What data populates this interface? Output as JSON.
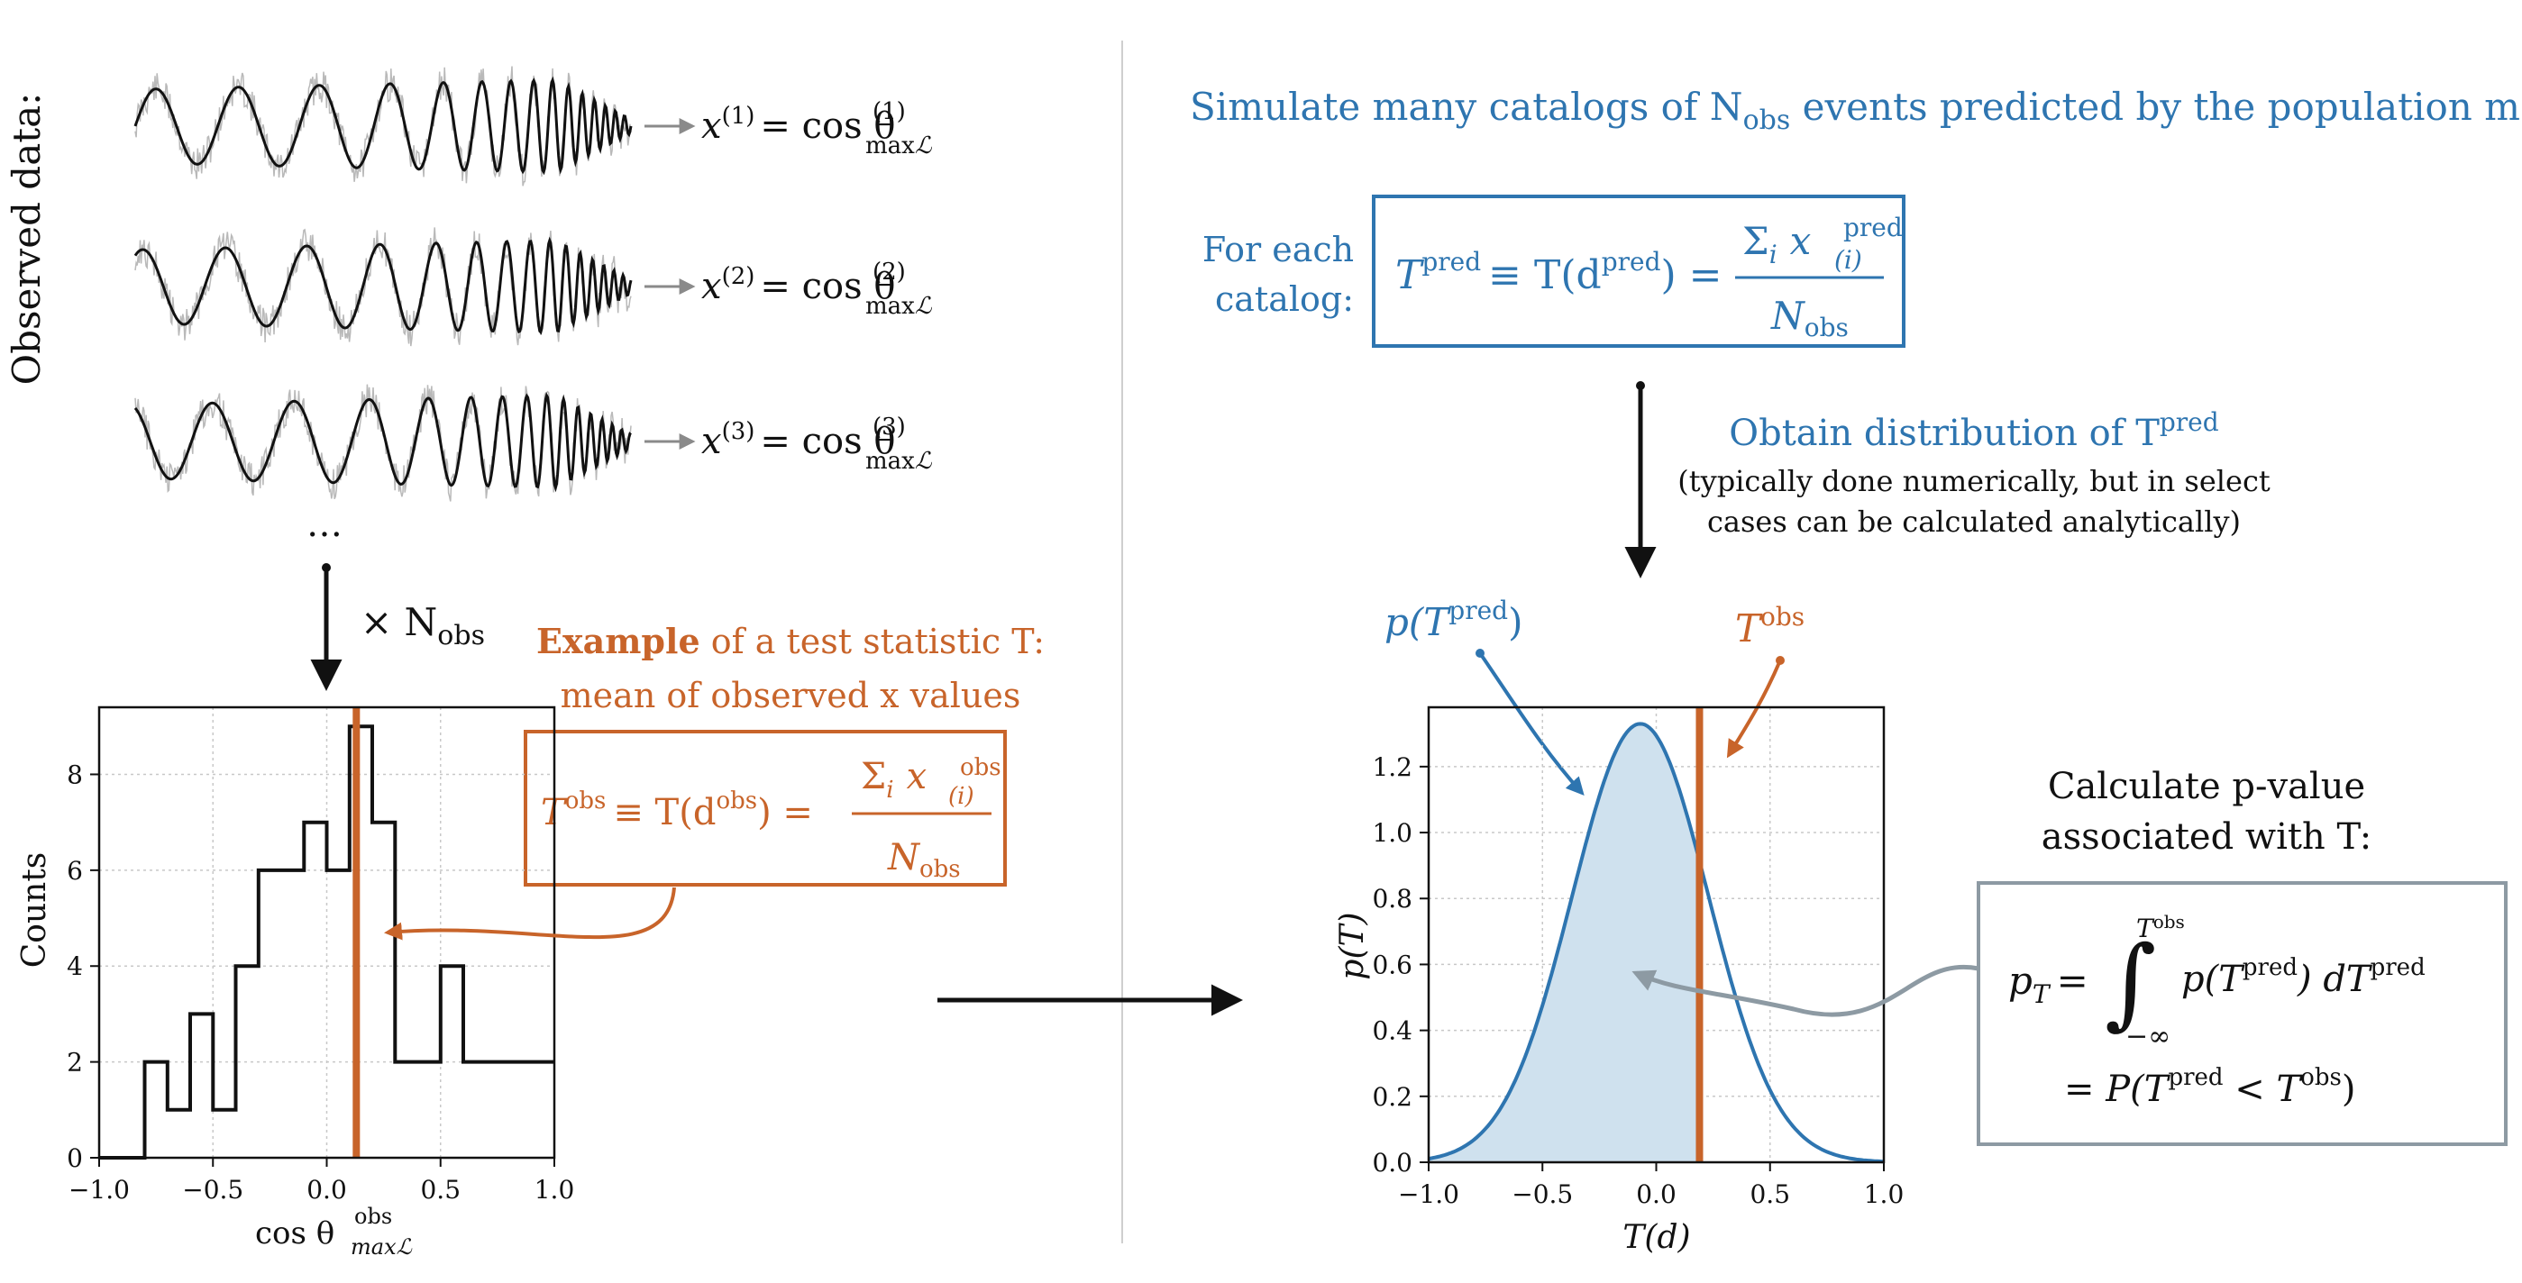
{
  "left_panel": {
    "ylabel_rotated": "Observed data:",
    "events": [
      {
        "sup": "(1)"
      },
      {
        "sup": "(2)"
      },
      {
        "sup": "(3)"
      }
    ],
    "event_lhs": "x",
    "event_rhs": "= cos θ",
    "event_sub": "max",
    "event_sub_script": "ℒ",
    "ellipsis": "…",
    "times_label": "× N",
    "times_sub": "obs",
    "example_bold": "Example",
    "example_rest": " of a test statistic T:",
    "example_line2": "mean of observed x values",
    "box_formula": {
      "lhs": "T",
      "lhs_sup": "obs",
      "mid": "≡ T(d",
      "mid_sup": "obs",
      "mid_close": ") =",
      "numer": "Σ",
      "numer_sub": "i",
      "numer_x": "x",
      "numer_x_sub": "(i)",
      "numer_x_sup": "obs",
      "denom": "N",
      "denom_sub": "obs"
    },
    "histogram": {
      "ylabel": "Counts",
      "xlabel_main": "cos θ",
      "xlabel_sup": "obs",
      "xlabel_sub": "maxℒ",
      "xticks": [
        "−1.0",
        "−0.5",
        "0.0",
        "0.5",
        "1.0"
      ],
      "yticks": [
        "0",
        "2",
        "4",
        "6",
        "8"
      ]
    }
  },
  "right_panel": {
    "headline_pre": "Simulate many catalogs of N",
    "headline_sub": "obs",
    "headline_post": " events predicted by the population model …",
    "for_each_line1": "For each",
    "for_each_line2": "catalog:",
    "box_formula": {
      "lhs": "T",
      "lhs_sup": "pred",
      "mid": "≡ T(d",
      "mid_sup": "pred",
      "mid_close": ") =",
      "numer": "Σ",
      "numer_sub": "i",
      "numer_x": "x",
      "numer_x_sub": "(i)",
      "numer_x_sup": "pred",
      "denom": "N",
      "denom_sub": "obs"
    },
    "obtain_main": "Obtain distribution of T",
    "obtain_sup": "pred",
    "obtain_note1": "(typically done numerically, but in select",
    "obtain_note2": "cases can be calculated analytically)",
    "p_label": "p(T",
    "p_label_sup": "pred",
    "p_label_close": ")",
    "tobs_label": "T",
    "tobs_label_sup": "obs",
    "calc_line1": "Calculate p-value",
    "calc_line2": "associated with T:",
    "pvalue_box": {
      "lhs": "p",
      "lhs_sub": "T",
      "eq": "=",
      "int_upper": "T",
      "int_upper_sup": "obs",
      "int_lower": "−∞",
      "integrand": "p(T",
      "integrand_sup": "pred",
      "integrand_close": ") dT",
      "integrand_close_sup": "pred",
      "line2": "= P(T",
      "line2_sup1": "pred",
      "line2_mid": " < T",
      "line2_sup2": "obs",
      "line2_close": ")"
    },
    "density_plot": {
      "ylabel": "p(T)",
      "xlabel": "T(d)",
      "xticks": [
        "−1.0",
        "−0.5",
        "0.0",
        "0.5",
        "1.0"
      ],
      "yticks": [
        "0.0",
        "0.2",
        "0.4",
        "0.6",
        "0.8",
        "1.0",
        "1.2"
      ]
    }
  },
  "colors": {
    "orange": "#c8642a",
    "blue": "#2e75b0",
    "gray": "#8d9aa3",
    "fill": "#cfe1ee"
  },
  "chart_data": [
    {
      "type": "bar",
      "subtype": "step-histogram",
      "bin_edges": [
        -1.0,
        -0.9,
        -0.8,
        -0.7,
        -0.6,
        -0.5,
        -0.4,
        -0.3,
        -0.2,
        -0.1,
        0.0,
        0.1,
        0.2,
        0.3,
        0.4,
        0.5,
        0.6,
        0.7,
        0.8,
        0.9,
        1.0
      ],
      "values": [
        0,
        0,
        2,
        1,
        3,
        1,
        4,
        6,
        6,
        7,
        6,
        9,
        7,
        2,
        2,
        4,
        2,
        2,
        2,
        2
      ],
      "vline": 0.13,
      "xlim": [
        -1.0,
        1.0
      ],
      "ylim": [
        0,
        9.4
      ],
      "xlabel": "cos θ^obs_maxℒ",
      "ylabel": "Counts",
      "grid": true
    },
    {
      "type": "area",
      "curve": "normal",
      "mean": -0.07,
      "sd": 0.3,
      "shade_upper": 0.19,
      "vline": 0.19,
      "xlim": [
        -1.0,
        1.0
      ],
      "ylim": [
        0,
        1.38
      ],
      "xlabel": "T(d)",
      "ylabel": "p(T)",
      "grid": true
    }
  ]
}
